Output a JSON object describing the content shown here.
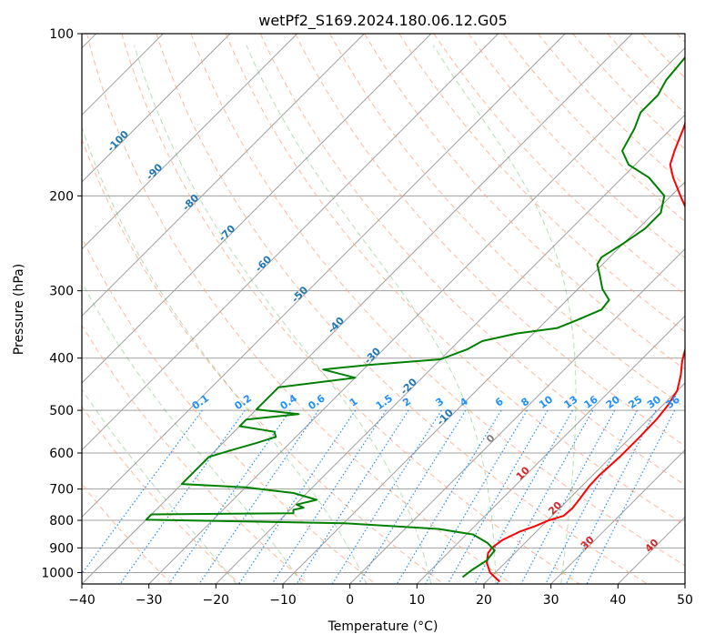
{
  "chart_data": {
    "type": "skew-t log-p",
    "title": "wetPf2_S169.2024.180.06.12.G05",
    "xlabel": "Temperature (°C)",
    "ylabel": "Pressure (hPa)",
    "xlim": [
      -40,
      50
    ],
    "ylim": [
      1050,
      100
    ],
    "y_scale": "log",
    "grid": true,
    "x_ticks": [
      -40,
      -30,
      -20,
      -10,
      0,
      10,
      20,
      30,
      40,
      50
    ],
    "y_ticks": [
      100,
      200,
      300,
      400,
      500,
      600,
      700,
      800,
      900,
      1000
    ],
    "series": [
      {
        "color": "#ff0000",
        "points": [
          {
            "p": 1040,
            "t": 22.0
          },
          {
            "p": 1000,
            "t": 19.2
          },
          {
            "p": 960,
            "t": 17.3
          },
          {
            "p": 920,
            "t": 16.0
          },
          {
            "p": 900,
            "t": 15.8
          },
          {
            "p": 870,
            "t": 16.2
          },
          {
            "p": 840,
            "t": 17.5
          },
          {
            "p": 820,
            "t": 19.0
          },
          {
            "p": 800,
            "t": 20.2
          },
          {
            "p": 785,
            "t": 21.7
          },
          {
            "p": 760,
            "t": 21.9
          },
          {
            "p": 730,
            "t": 21.6
          },
          {
            "p": 690,
            "t": 21.1
          },
          {
            "p": 660,
            "t": 21.0
          },
          {
            "p": 610,
            "t": 21.3
          },
          {
            "p": 560,
            "t": 21.3
          },
          {
            "p": 520,
            "t": 21.2
          },
          {
            "p": 490,
            "t": 20.8
          },
          {
            "p": 460,
            "t": 20.0
          },
          {
            "p": 430,
            "t": 18.2
          },
          {
            "p": 405,
            "t": 16.3
          },
          {
            "p": 385,
            "t": 15.0
          },
          {
            "p": 365,
            "t": 14.3
          },
          {
            "p": 340,
            "t": 12.7
          },
          {
            "p": 310,
            "t": 9.5
          },
          {
            "p": 280,
            "t": 6.3
          },
          {
            "p": 245,
            "t": 1.2
          },
          {
            "p": 220,
            "t": -3.8
          },
          {
            "p": 200,
            "t": -8.6
          },
          {
            "p": 185,
            "t": -12.4
          },
          {
            "p": 175,
            "t": -14.8
          },
          {
            "p": 165,
            "t": -16.2
          },
          {
            "p": 150,
            "t": -18.2
          },
          {
            "p": 130,
            "t": -21.6
          },
          {
            "p": 115,
            "t": -24.0
          },
          {
            "p": 106,
            "t": -24.2
          },
          {
            "p": 100,
            "t": -23.5
          }
        ]
      },
      {
        "color": "#008000",
        "points": [
          {
            "p": 1020,
            "t": 15.8
          },
          {
            "p": 990,
            "t": 16.1
          },
          {
            "p": 950,
            "t": 16.9
          },
          {
            "p": 910,
            "t": 16.6
          },
          {
            "p": 880,
            "t": 14.3
          },
          {
            "p": 850,
            "t": 11.0
          },
          {
            "p": 830,
            "t": 5.0
          },
          {
            "p": 810,
            "t": -10.0
          },
          {
            "p": 798,
            "t": -40.0
          },
          {
            "p": 780,
            "t": -40.0
          },
          {
            "p": 776,
            "t": -19.0
          },
          {
            "p": 765,
            "t": -19.5
          },
          {
            "p": 758,
            "t": -18.3
          },
          {
            "p": 748,
            "t": -19.8
          },
          {
            "p": 733,
            "t": -17.5
          },
          {
            "p": 712,
            "t": -22.0
          },
          {
            "p": 695,
            "t": -30.0
          },
          {
            "p": 685,
            "t": -40.0
          },
          {
            "p": 630,
            "t": -40.0
          },
          {
            "p": 610,
            "t": -40.0
          },
          {
            "p": 595,
            "t": -38.0
          },
          {
            "p": 575,
            "t": -35.0
          },
          {
            "p": 560,
            "t": -33.0
          },
          {
            "p": 548,
            "t": -34.0
          },
          {
            "p": 535,
            "t": -40.0
          },
          {
            "p": 520,
            "t": -40.0
          },
          {
            "p": 508,
            "t": -33.0
          },
          {
            "p": 498,
            "t": -40.0
          },
          {
            "p": 453,
            "t": -40.0
          },
          {
            "p": 435,
            "t": -30.0
          },
          {
            "p": 420,
            "t": -36.0
          },
          {
            "p": 412,
            "t": -30.0
          },
          {
            "p": 402,
            "t": -20.0
          },
          {
            "p": 385,
            "t": -17.5
          },
          {
            "p": 372,
            "t": -16.5
          },
          {
            "p": 360,
            "t": -12.5
          },
          {
            "p": 352,
            "t": -7.3
          },
          {
            "p": 340,
            "t": -5.5
          },
          {
            "p": 325,
            "t": -3.4
          },
          {
            "p": 312,
            "t": -3.7
          },
          {
            "p": 298,
            "t": -6.3
          },
          {
            "p": 280,
            "t": -8.9
          },
          {
            "p": 268,
            "t": -10.8
          },
          {
            "p": 260,
            "t": -11.2
          },
          {
            "p": 245,
            "t": -10.0
          },
          {
            "p": 230,
            "t": -9.0
          },
          {
            "p": 215,
            "t": -9.0
          },
          {
            "p": 200,
            "t": -11.0
          },
          {
            "p": 185,
            "t": -16.0
          },
          {
            "p": 175,
            "t": -21.0
          },
          {
            "p": 165,
            "t": -24.0
          },
          {
            "p": 150,
            "t": -25.5
          },
          {
            "p": 140,
            "t": -27.0
          },
          {
            "p": 130,
            "t": -27.0
          },
          {
            "p": 122,
            "t": -28.0
          },
          {
            "p": 110,
            "t": -28.6
          },
          {
            "p": 100,
            "t": -29.2
          }
        ]
      }
    ],
    "dry_adiabat_labels": [
      "-100",
      "-90",
      "-80",
      "-70",
      "-60",
      "-50",
      "-40",
      "-30",
      "-20",
      "-10",
      "0",
      "10",
      "20",
      "30",
      "40"
    ],
    "mixing_ratio_labels": [
      "0.1",
      "0.2",
      "0.4",
      "0.6",
      "1",
      "1.5",
      "2",
      "3",
      "4",
      "6",
      "8",
      "10",
      "13",
      "16",
      "20",
      "25",
      "30",
      "36"
    ],
    "colors": {
      "temperature": "#ff0000",
      "dewpoint": "#008000",
      "isotherm": "#a0a0a0",
      "dry_adiabat": "#ffa07a",
      "moist_adiabat": "#2ca02c",
      "mixing_ratio": "#1e90ff",
      "dry_label": "#1f77b4",
      "warm_label": "#d62728",
      "zero_label": "#7f7f7f"
    }
  }
}
